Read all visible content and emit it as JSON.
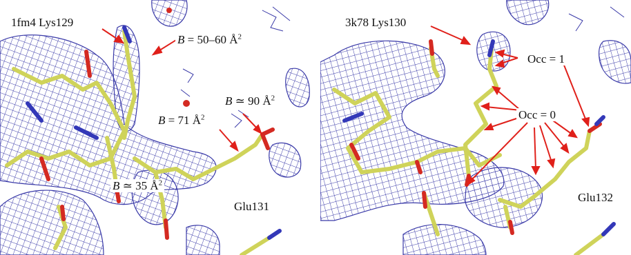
{
  "colors": {
    "mesh": "#3a3aa8",
    "carbon": "#cfd35a",
    "carbon_dark": "#9aa03a",
    "oxygen": "#d42a22",
    "nitrogen": "#3338b8",
    "arrow": "#e0201a",
    "background": "#ffffff"
  },
  "left_panel": {
    "residue_main": "1fm4 Lys129",
    "b_main_sym": "B",
    "b_main_text": " = 50–60 Å",
    "b_90_sym": "B",
    "b_90_text": " ≃ 90 Å",
    "b_71_sym": "B",
    "b_71_text": " = 71 Å",
    "b_35_sym": "B",
    "b_35_text": " ≃ 35 Å",
    "squared": "2",
    "residue_other": "Glu131"
  },
  "right_panel": {
    "residue_main": "3k78 Lys130",
    "occ_1": "Occ = 1",
    "occ_0": "Occ = 0",
    "residue_other": "Glu132"
  }
}
